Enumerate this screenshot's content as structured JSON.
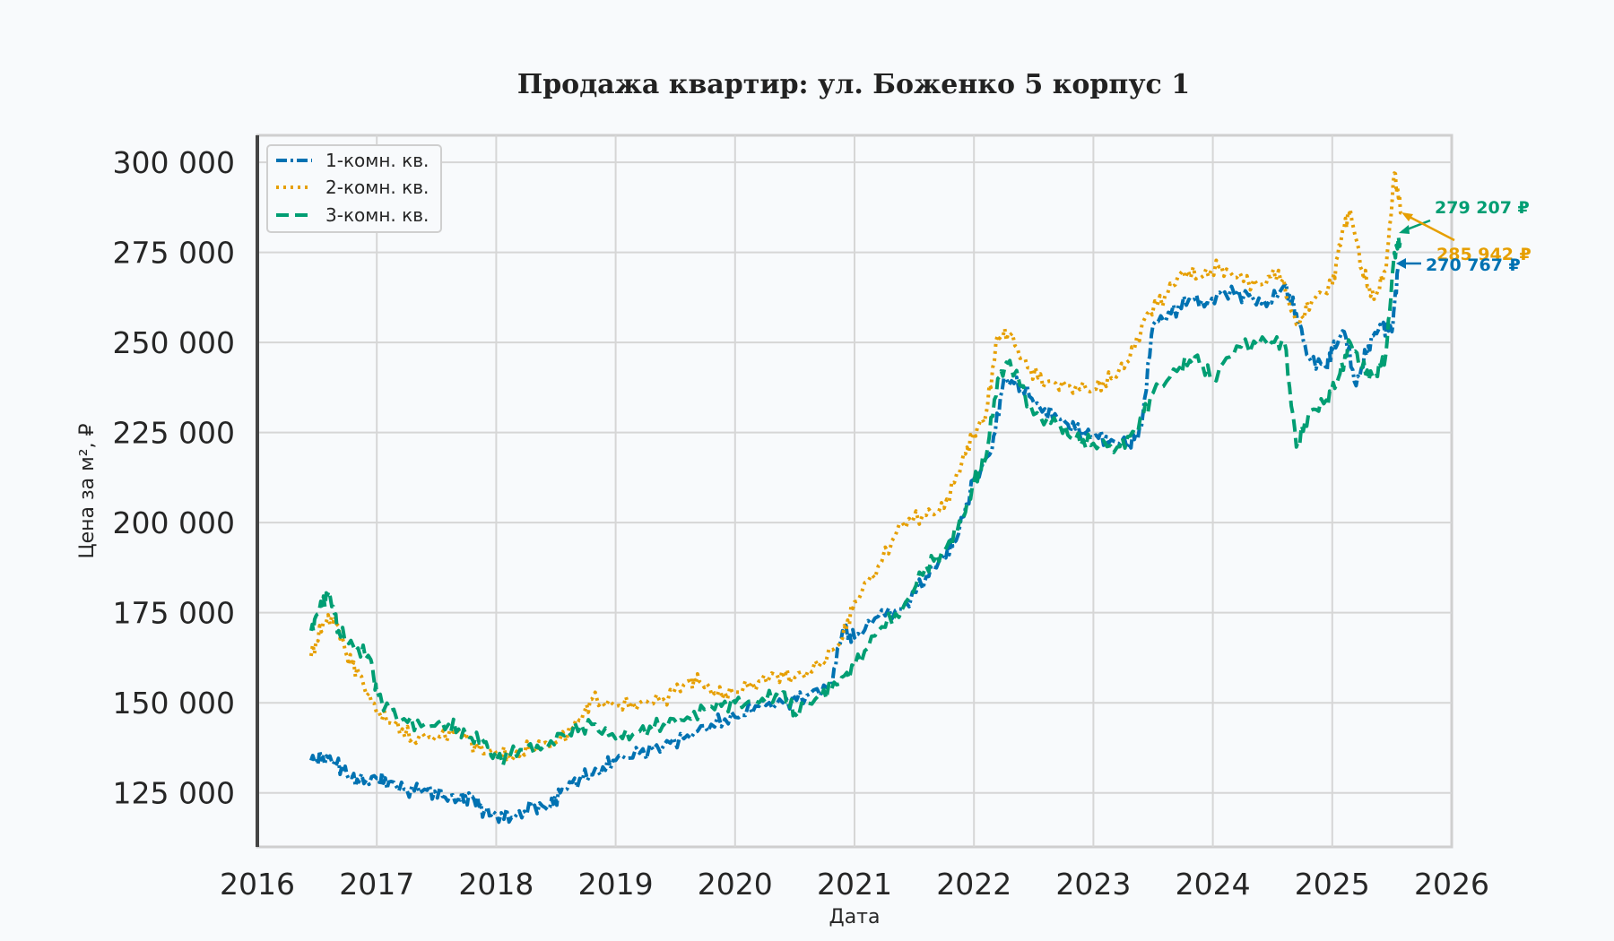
{
  "chart_data": {
    "type": "line",
    "title": "Продажа квартир: ул. Боженко 5 корпус 1",
    "xlabel": "Дата",
    "ylabel": "Цена за м², ₽",
    "xlim": [
      2016.0,
      2026.0
    ],
    "ylim": [
      110000,
      307500
    ],
    "x_ticks": [
      2016,
      2017,
      2018,
      2019,
      2020,
      2021,
      2022,
      2023,
      2024,
      2025,
      2026
    ],
    "x_tick_labels": [
      "2016",
      "2017",
      "2018",
      "2019",
      "2020",
      "2021",
      "2022",
      "2023",
      "2024",
      "2025",
      "2026"
    ],
    "y_ticks": [
      125000,
      150000,
      175000,
      200000,
      225000,
      250000,
      275000,
      300000
    ],
    "y_tick_labels": [
      "125 000",
      "150 000",
      "175 000",
      "200 000",
      "225 000",
      "250 000",
      "275 000",
      "300 000"
    ],
    "grid": true,
    "legend_position": "top-left",
    "series": [
      {
        "name": "1-комн. кв.",
        "color": "#0072b2",
        "style": "dash-dot",
        "x": [
          2016.45,
          2016.55,
          2016.65,
          2016.75,
          2016.85,
          2017.0,
          2017.1,
          2017.25,
          2017.4,
          2017.55,
          2017.7,
          2017.8,
          2017.9,
          2018.0,
          2018.15,
          2018.3,
          2018.45,
          2018.55,
          2018.7,
          2018.85,
          2019.0,
          2019.2,
          2019.4,
          2019.6,
          2019.8,
          2020.0,
          2020.2,
          2020.4,
          2020.6,
          2020.8,
          2020.9,
          2021.0,
          2021.2,
          2021.4,
          2021.6,
          2021.75,
          2021.85,
          2022.0,
          2022.15,
          2022.25,
          2022.4,
          2022.55,
          2022.7,
          2022.85,
          2023.0,
          2023.15,
          2023.3,
          2023.4,
          2023.5,
          2023.65,
          2023.8,
          2023.95,
          2024.1,
          2024.3,
          2024.45,
          2024.6,
          2024.7,
          2024.8,
          2024.95,
          2025.0,
          2025.1,
          2025.2,
          2025.3,
          2025.4,
          2025.5,
          2025.55
        ],
        "values": [
          134000,
          135000,
          134000,
          130000,
          128000,
          129000,
          128000,
          126000,
          126000,
          124000,
          123000,
          124000,
          120000,
          119000,
          118000,
          121000,
          121000,
          126000,
          129000,
          131000,
          134000,
          136000,
          138000,
          141000,
          144000,
          146000,
          149000,
          150000,
          152000,
          155000,
          170000,
          168000,
          174000,
          176000,
          185000,
          191000,
          195000,
          212000,
          220000,
          240000,
          238000,
          232000,
          229000,
          226000,
          224000,
          223000,
          222000,
          226000,
          255000,
          258000,
          262000,
          261000,
          264000,
          263000,
          260000,
          266000,
          258000,
          246000,
          243000,
          248000,
          253000,
          238000,
          249000,
          255000,
          253000,
          270767
        ]
      },
      {
        "name": "2-комн. кв.",
        "color": "#e69f00",
        "style": "dotted",
        "x": [
          2016.45,
          2016.55,
          2016.65,
          2016.75,
          2016.85,
          2017.0,
          2017.15,
          2017.3,
          2017.5,
          2017.7,
          2017.85,
          2018.0,
          2018.15,
          2018.3,
          2018.5,
          2018.7,
          2018.8,
          2019.0,
          2019.2,
          2019.4,
          2019.6,
          2019.7,
          2019.85,
          2020.0,
          2020.2,
          2020.35,
          2020.5,
          2020.7,
          2020.9,
          2021.0,
          2021.2,
          2021.4,
          2021.6,
          2021.75,
          2021.9,
          2022.0,
          2022.1,
          2022.2,
          2022.3,
          2022.45,
          2022.6,
          2022.8,
          2023.0,
          2023.15,
          2023.3,
          2023.45,
          2023.6,
          2023.75,
          2023.9,
          2024.05,
          2024.2,
          2024.4,
          2024.55,
          2024.7,
          2024.85,
          2025.0,
          2025.08,
          2025.15,
          2025.25,
          2025.35,
          2025.45,
          2025.52,
          2025.58
        ],
        "values": [
          163000,
          172000,
          174000,
          163000,
          158000,
          147000,
          144000,
          140000,
          141000,
          142000,
          137000,
          136000,
          135000,
          138000,
          139000,
          145000,
          151000,
          149000,
          150000,
          151000,
          156000,
          156000,
          152000,
          153000,
          156000,
          158000,
          157000,
          160000,
          168000,
          178000,
          188000,
          200000,
          202000,
          204000,
          217000,
          225000,
          230000,
          252000,
          252000,
          243000,
          239000,
          238000,
          237000,
          240000,
          245000,
          258000,
          263000,
          270000,
          268000,
          271000,
          268000,
          266000,
          270000,
          255000,
          262000,
          266000,
          280000,
          287000,
          270000,
          262000,
          270000,
          297000,
          285942
        ]
      },
      {
        "name": "3-комн. кв.",
        "color": "#009e73",
        "style": "dashed",
        "x": [
          2016.45,
          2016.52,
          2016.6,
          2016.68,
          2016.8,
          2016.95,
          2017.0,
          2017.2,
          2017.4,
          2017.6,
          2017.75,
          2017.9,
          2018.0,
          2018.2,
          2018.4,
          2018.6,
          2018.8,
          2019.0,
          2019.2,
          2019.4,
          2019.6,
          2019.8,
          2020.0,
          2020.2,
          2020.4,
          2020.5,
          2020.7,
          2020.85,
          2021.0,
          2021.2,
          2021.4,
          2021.6,
          2021.75,
          2021.9,
          2022.0,
          2022.1,
          2022.2,
          2022.3,
          2022.5,
          2022.7,
          2022.85,
          2023.0,
          2023.2,
          2023.35,
          2023.5,
          2023.7,
          2023.85,
          2024.0,
          2024.2,
          2024.45,
          2024.6,
          2024.7,
          2024.8,
          2024.95,
          2025.05,
          2025.15,
          2025.25,
          2025.35,
          2025.45,
          2025.52,
          2025.58
        ],
        "values": [
          170000,
          176000,
          181000,
          170000,
          166000,
          162000,
          152000,
          145000,
          144000,
          144000,
          141000,
          139000,
          134000,
          137000,
          138000,
          142000,
          144000,
          140000,
          142000,
          144000,
          146000,
          149000,
          150000,
          150000,
          153000,
          147000,
          152000,
          155000,
          160000,
          170000,
          176000,
          188000,
          192000,
          200000,
          211000,
          218000,
          240000,
          245000,
          230000,
          227000,
          223000,
          222000,
          221000,
          225000,
          236000,
          242000,
          246000,
          240000,
          249000,
          250000,
          250000,
          221000,
          230000,
          234000,
          240000,
          250000,
          243000,
          240000,
          247000,
          275000,
          279207
        ]
      }
    ],
    "annotations": [
      {
        "text": "279 207 ₽",
        "series": "3-комн. кв."
      },
      {
        "text": "285 942 ₽",
        "series": "2-комн. кв."
      },
      {
        "text": "270 767 ₽",
        "series": "1-комн. кв."
      }
    ]
  }
}
